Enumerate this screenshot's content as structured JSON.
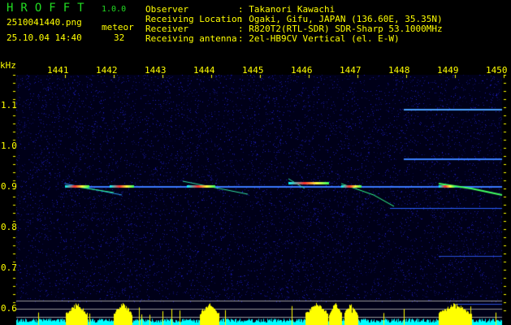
{
  "app": {
    "title": "HROFFT",
    "version": "1.0.0"
  },
  "file": {
    "name": "2510041440.png",
    "datetime": "25.10.04 14:40"
  },
  "meteor": {
    "label": "meteor",
    "count": "32"
  },
  "info": [
    {
      "label": "Observer",
      "value": ": Takanori Kawachi"
    },
    {
      "label": "Receiving Location",
      "value": ": Ogaki, Gifu, JAPAN (136.60E, 35.35N)"
    },
    {
      "label": "Receiver",
      "value": ": R820T2(RTL-SDR) SDR-Sharp 53.1000MHz"
    },
    {
      "label": "Receiving antenna",
      "value": ": 2el-HB9CV Vertical (el. E-W)"
    }
  ],
  "axis": {
    "unit": "kHz",
    "x_ticks": [
      "1441",
      "1442",
      "1443",
      "1444",
      "1445",
      "1446",
      "1447",
      "1448",
      "1449",
      "1450"
    ],
    "y_ticks": [
      "1.1",
      "1.0",
      "0.9",
      "0.8",
      "0.7",
      "0.6"
    ]
  },
  "colors": {
    "text": "#ffff00",
    "title": "#22dd22",
    "signal": "#2060ff",
    "meteor_core": "#ff3030",
    "counter_high": "#ffff00",
    "counter_low": "#00ffff"
  }
}
